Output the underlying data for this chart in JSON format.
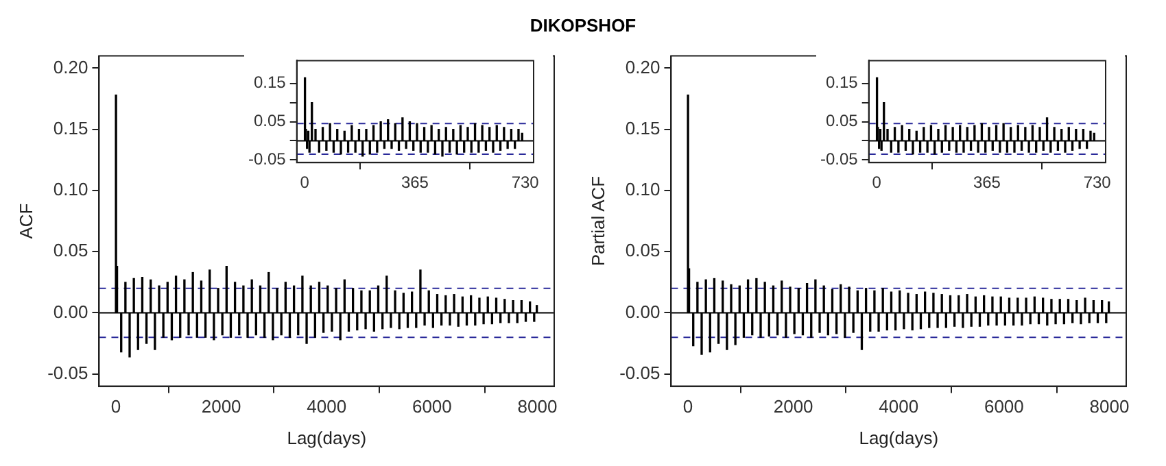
{
  "chart_data": [
    {
      "type": "bar",
      "title": "DIKOPSHOF",
      "xlabel": "Lag(days)",
      "ylabel": "ACF",
      "xlim": [
        -320,
        8320
      ],
      "ylim": [
        -0.06,
        0.21
      ],
      "xticks": [
        0,
        2000,
        4000,
        6000,
        8000
      ],
      "yticks": [
        {
          "value": -0.05,
          "label": "-0.05"
        },
        {
          "value": 0,
          "label": "0.00"
        },
        {
          "value": 0.05,
          "label": "0.05"
        },
        {
          "value": 0.1,
          "label": "0.10"
        },
        {
          "value": 0.15,
          "label": "0.15"
        },
        {
          "value": 0.2,
          "label": "0.20"
        }
      ],
      "grid": false,
      "legend": false,
      "x": [
        1,
        20,
        100,
        180,
        260,
        340,
        420,
        500,
        580,
        660,
        740,
        820,
        900,
        980,
        1060,
        1140,
        1220,
        1300,
        1380,
        1460,
        1540,
        1620,
        1700,
        1780,
        1860,
        1940,
        2020,
        2100,
        2180,
        2260,
        2340,
        2420,
        2500,
        2580,
        2660,
        2740,
        2820,
        2900,
        2980,
        3060,
        3140,
        3220,
        3300,
        3380,
        3460,
        3540,
        3620,
        3700,
        3780,
        3860,
        3940,
        4020,
        4100,
        4180,
        4260,
        4340,
        4420,
        4500,
        4580,
        4660,
        4740,
        4820,
        4900,
        4980,
        5060,
        5140,
        5220,
        5300,
        5380,
        5460,
        5540,
        5620,
        5700,
        5780,
        5860,
        5940,
        6020,
        6100,
        6180,
        6260,
        6340,
        6420,
        6500,
        6580,
        6660,
        6740,
        6820,
        6900,
        6980,
        7060,
        7140,
        7220,
        7300,
        7380,
        7460,
        7540,
        7620,
        7700,
        7780,
        7860,
        7940,
        7990
      ],
      "series": [
        {
          "color": "#000000",
          "values": [
            0.178,
            0.038,
            -0.032,
            0.025,
            -0.036,
            0.028,
            -0.03,
            0.029,
            -0.025,
            0.027,
            -0.03,
            0.022,
            -0.02,
            0.025,
            -0.022,
            0.03,
            -0.02,
            0.027,
            -0.018,
            0.033,
            -0.02,
            0.026,
            -0.02,
            0.035,
            -0.022,
            0.02,
            -0.018,
            0.038,
            -0.02,
            0.025,
            -0.018,
            0.022,
            -0.02,
            0.027,
            -0.018,
            0.022,
            -0.02,
            0.033,
            -0.022,
            0.02,
            -0.018,
            0.025,
            -0.02,
            0.022,
            -0.018,
            0.03,
            -0.025,
            0.022,
            -0.02,
            0.025,
            -0.016,
            0.022,
            -0.015,
            0.02,
            -0.022,
            0.027,
            -0.015,
            0.02,
            -0.014,
            0.018,
            -0.013,
            0.018,
            -0.015,
            0.022,
            -0.013,
            0.03,
            -0.012,
            0.018,
            -0.013,
            0.016,
            -0.012,
            0.017,
            -0.012,
            0.035,
            -0.01,
            0.018,
            -0.012,
            0.015,
            -0.01,
            0.014,
            -0.01,
            0.015,
            -0.011,
            0.013,
            -0.01,
            0.014,
            -0.01,
            0.012,
            -0.009,
            0.013,
            -0.009,
            0.012,
            -0.008,
            0.011,
            -0.008,
            0.01,
            -0.008,
            0.01,
            -0.007,
            0.009,
            -0.007,
            0.006
          ]
        }
      ],
      "ref_lines": [
        {
          "axis": "y",
          "value": 0,
          "color": "#000000",
          "line_style": "solid"
        },
        {
          "axis": "y",
          "value": 0.02,
          "color": "#2a2a9a",
          "line_style": "dashed"
        },
        {
          "axis": "y",
          "value": -0.02,
          "color": "#2a2a9a",
          "line_style": "dashed"
        }
      ]
    },
    {
      "type": "bar",
      "xlim": [
        -26,
        758
      ],
      "ylim": [
        -0.057,
        0.21
      ],
      "xticks": [
        0,
        365,
        730
      ],
      "yticks": [
        {
          "value": -0.05,
          "label": "-0.05"
        },
        {
          "value": 0,
          "label": null
        },
        {
          "value": 0.05,
          "label": "0.05"
        },
        {
          "value": 0.1,
          "label": null
        },
        {
          "value": 0.15,
          "label": "0.15"
        }
      ],
      "grid": false,
      "legend": false,
      "x": [
        1,
        4,
        8,
        12,
        16,
        24,
        36,
        48,
        60,
        72,
        84,
        96,
        108,
        120,
        132,
        144,
        156,
        168,
        180,
        192,
        204,
        216,
        228,
        240,
        252,
        264,
        276,
        288,
        300,
        312,
        324,
        336,
        348,
        360,
        372,
        384,
        396,
        408,
        420,
        432,
        444,
        456,
        468,
        480,
        492,
        504,
        516,
        528,
        540,
        552,
        564,
        576,
        588,
        600,
        612,
        624,
        636,
        648,
        660,
        672,
        684,
        696,
        708,
        720
      ],
      "series": [
        {
          "color": "#000000",
          "values": [
            0.165,
            0.03,
            -0.02,
            0.025,
            -0.03,
            0.1,
            0.03,
            -0.03,
            0.035,
            -0.025,
            0.045,
            -0.03,
            0.03,
            -0.035,
            0.025,
            -0.03,
            0.04,
            -0.03,
            0.03,
            -0.04,
            0.03,
            -0.035,
            0.04,
            -0.03,
            0.05,
            -0.02,
            0.055,
            -0.02,
            0.045,
            -0.025,
            0.06,
            -0.02,
            0.05,
            -0.025,
            0.045,
            -0.03,
            0.035,
            -0.03,
            0.04,
            -0.035,
            0.03,
            -0.04,
            0.035,
            -0.03,
            0.03,
            -0.035,
            0.04,
            -0.03,
            0.035,
            -0.03,
            0.045,
            -0.03,
            0.04,
            -0.025,
            0.035,
            -0.03,
            0.04,
            -0.025,
            0.035,
            -0.02,
            0.03,
            -0.02,
            0.03,
            0.02
          ]
        }
      ],
      "ref_lines": [
        {
          "axis": "y",
          "value": 0,
          "color": "#000000",
          "line_style": "solid"
        },
        {
          "axis": "y",
          "value": 0.045,
          "color": "#2a2a9a",
          "line_style": "dashed"
        },
        {
          "axis": "y",
          "value": -0.035,
          "color": "#2a2a9a",
          "line_style": "dashed"
        }
      ]
    },
    {
      "type": "bar",
      "xlabel": "Lag(days)",
      "ylabel": "Partial ACF",
      "xlim": [
        -320,
        8320
      ],
      "ylim": [
        -0.06,
        0.21
      ],
      "xticks": [
        0,
        2000,
        4000,
        6000,
        8000
      ],
      "yticks": [
        {
          "value": -0.05,
          "label": "-0.05"
        },
        {
          "value": 0,
          "label": "0.00"
        },
        {
          "value": 0.05,
          "label": "0.05"
        },
        {
          "value": 0.1,
          "label": "0.10"
        },
        {
          "value": 0.15,
          "label": "0.15"
        },
        {
          "value": 0.2,
          "label": "0.20"
        }
      ],
      "grid": false,
      "legend": false,
      "x": [
        1,
        20,
        100,
        180,
        260,
        340,
        420,
        500,
        580,
        660,
        740,
        820,
        900,
        980,
        1060,
        1140,
        1220,
        1300,
        1380,
        1460,
        1540,
        1620,
        1700,
        1780,
        1860,
        1940,
        2020,
        2100,
        2180,
        2260,
        2340,
        2420,
        2500,
        2580,
        2660,
        2740,
        2820,
        2900,
        2980,
        3060,
        3140,
        3220,
        3300,
        3380,
        3460,
        3540,
        3620,
        3700,
        3780,
        3860,
        3940,
        4020,
        4100,
        4180,
        4260,
        4340,
        4420,
        4500,
        4580,
        4660,
        4740,
        4820,
        4900,
        4980,
        5060,
        5140,
        5220,
        5300,
        5380,
        5460,
        5540,
        5620,
        5700,
        5780,
        5860,
        5940,
        6020,
        6100,
        6180,
        6260,
        6340,
        6420,
        6500,
        6580,
        6660,
        6740,
        6820,
        6900,
        6980,
        7060,
        7140,
        7220,
        7300,
        7380,
        7460,
        7540,
        7620,
        7700,
        7780,
        7860,
        7940,
        7990
      ],
      "series": [
        {
          "color": "#000000",
          "values": [
            0.178,
            0.036,
            -0.027,
            0.025,
            -0.034,
            0.027,
            -0.032,
            0.028,
            -0.025,
            0.026,
            -0.03,
            0.023,
            -0.026,
            0.022,
            -0.02,
            0.027,
            -0.018,
            0.028,
            -0.02,
            0.025,
            -0.019,
            0.022,
            -0.018,
            0.026,
            -0.02,
            0.021,
            -0.017,
            0.02,
            -0.018,
            0.024,
            -0.02,
            0.027,
            -0.016,
            0.022,
            -0.018,
            0.019,
            -0.017,
            0.023,
            -0.02,
            0.021,
            -0.016,
            0.018,
            -0.03,
            0.02,
            -0.015,
            0.018,
            -0.015,
            0.02,
            -0.014,
            0.017,
            -0.014,
            0.018,
            -0.013,
            0.016,
            -0.014,
            0.015,
            -0.013,
            0.017,
            -0.012,
            0.016,
            -0.012,
            0.015,
            -0.012,
            0.014,
            -0.011,
            0.014,
            -0.012,
            0.015,
            -0.011,
            0.013,
            -0.011,
            0.014,
            -0.01,
            0.013,
            -0.01,
            0.013,
            -0.01,
            0.012,
            -0.01,
            0.012,
            -0.01,
            0.012,
            -0.009,
            0.013,
            -0.009,
            0.012,
            -0.01,
            0.011,
            -0.009,
            0.011,
            -0.009,
            0.011,
            -0.008,
            0.01,
            -0.009,
            0.012,
            -0.008,
            0.01,
            -0.008,
            0.01,
            -0.008,
            0.009
          ]
        }
      ],
      "ref_lines": [
        {
          "axis": "y",
          "value": 0,
          "color": "#000000",
          "line_style": "solid"
        },
        {
          "axis": "y",
          "value": 0.02,
          "color": "#2a2a9a",
          "line_style": "dashed"
        },
        {
          "axis": "y",
          "value": -0.02,
          "color": "#2a2a9a",
          "line_style": "dashed"
        }
      ]
    },
    {
      "type": "bar",
      "xlim": [
        -26,
        758
      ],
      "ylim": [
        -0.057,
        0.21
      ],
      "xticks": [
        0,
        365,
        730
      ],
      "yticks": [
        {
          "value": -0.05,
          "label": "-0.05"
        },
        {
          "value": 0,
          "label": null
        },
        {
          "value": 0.05,
          "label": "0.05"
        },
        {
          "value": 0.1,
          "label": null
        },
        {
          "value": 0.15,
          "label": "0.15"
        }
      ],
      "grid": false,
      "legend": false,
      "x": [
        1,
        4,
        8,
        12,
        16,
        24,
        36,
        48,
        60,
        72,
        84,
        96,
        108,
        120,
        132,
        144,
        156,
        168,
        180,
        192,
        204,
        216,
        228,
        240,
        252,
        264,
        276,
        288,
        300,
        312,
        324,
        336,
        348,
        360,
        372,
        384,
        396,
        408,
        420,
        432,
        444,
        456,
        468,
        480,
        492,
        504,
        516,
        528,
        540,
        552,
        564,
        576,
        588,
        600,
        612,
        624,
        636,
        648,
        660,
        672,
        684,
        696,
        708,
        720
      ],
      "series": [
        {
          "color": "#000000",
          "values": [
            0.165,
            0.035,
            -0.02,
            0.03,
            -0.025,
            0.1,
            0.03,
            -0.03,
            0.035,
            -0.03,
            0.04,
            -0.025,
            0.03,
            -0.035,
            0.025,
            -0.03,
            0.035,
            -0.03,
            0.04,
            -0.035,
            0.03,
            -0.03,
            0.04,
            -0.025,
            0.035,
            -0.03,
            0.04,
            -0.03,
            0.035,
            -0.025,
            0.04,
            -0.03,
            0.045,
            -0.03,
            0.035,
            -0.025,
            0.04,
            -0.03,
            0.045,
            -0.03,
            0.035,
            -0.03,
            0.04,
            -0.025,
            0.035,
            -0.03,
            0.04,
            -0.03,
            0.035,
            -0.025,
            0.06,
            -0.03,
            0.035,
            -0.025,
            0.03,
            -0.03,
            0.035,
            -0.025,
            0.03,
            -0.02,
            0.03,
            -0.02,
            0.025,
            0.02
          ]
        }
      ],
      "ref_lines": [
        {
          "axis": "y",
          "value": 0,
          "color": "#000000",
          "line_style": "solid"
        },
        {
          "axis": "y",
          "value": 0.045,
          "color": "#2a2a9a",
          "line_style": "dashed"
        },
        {
          "axis": "y",
          "value": -0.035,
          "color": "#2a2a9a",
          "line_style": "dashed"
        }
      ]
    }
  ]
}
